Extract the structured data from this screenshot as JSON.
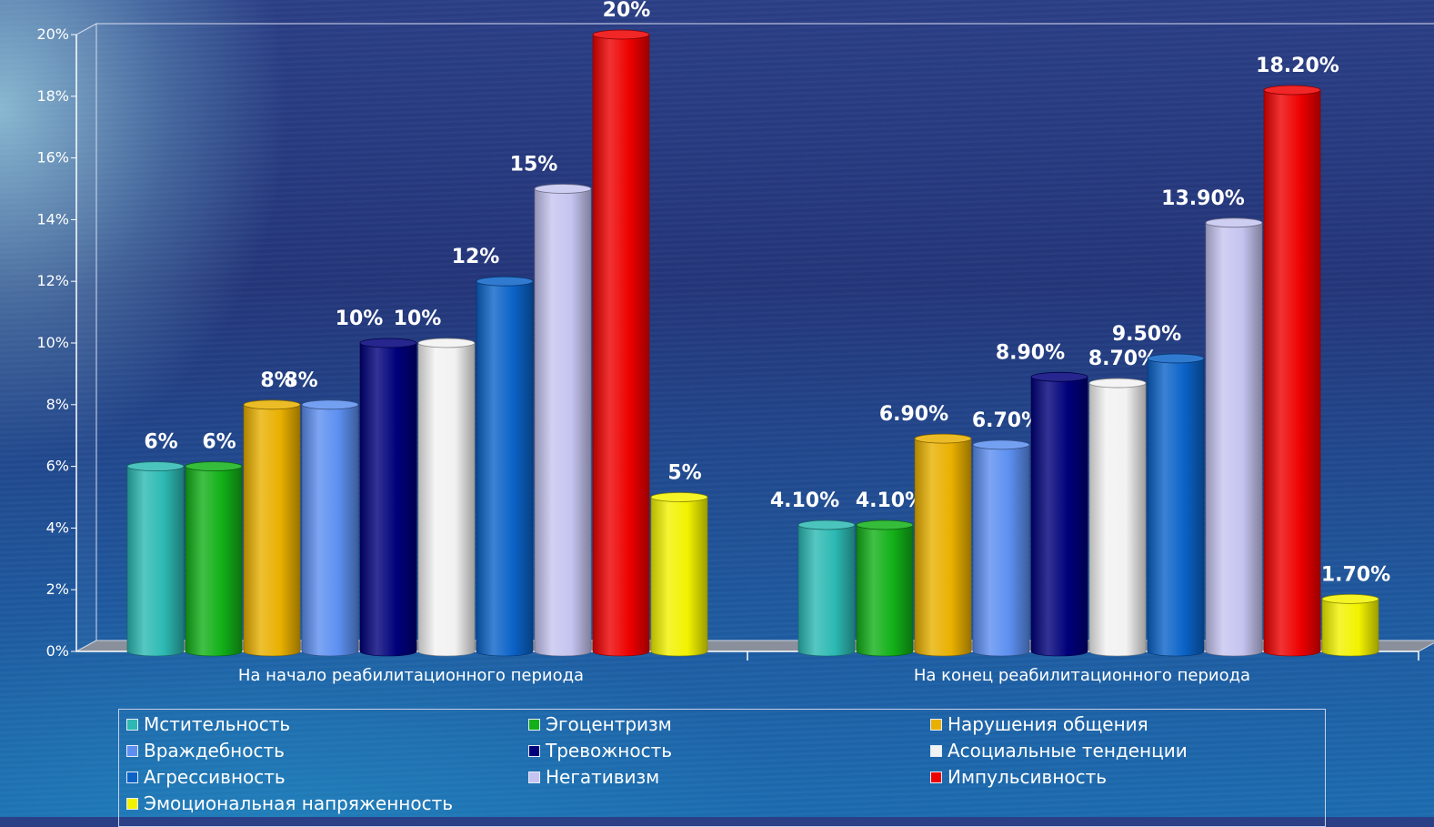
{
  "chart_data": {
    "type": "bar",
    "categories": [
      "На начало реабилитационного периода",
      "На конец реабилитационного периода"
    ],
    "ylim": [
      0,
      20
    ],
    "yticks": [
      "0%",
      "2%",
      "4%",
      "6%",
      "8%",
      "10%",
      "12%",
      "14%",
      "16%",
      "18%",
      "20%"
    ],
    "legend_position": "bottom",
    "series": [
      {
        "name": "Мстительность",
        "color": "#2cb9b3",
        "values": [
          6,
          4.1
        ],
        "labels": [
          "6%",
          "4.10%"
        ]
      },
      {
        "name": "Эгоцентризм",
        "color": "#12b018",
        "values": [
          6,
          4.1
        ],
        "labels": [
          "6%",
          "4.10%"
        ]
      },
      {
        "name": "Нарушения общения",
        "color": "#e9b000",
        "values": [
          8,
          6.9
        ],
        "labels": [
          "8%",
          "6.90%"
        ]
      },
      {
        "name": "Враждебность",
        "color": "#5c8ff0",
        "values": [
          8,
          6.7
        ],
        "labels": [
          "8%",
          "6.70%"
        ]
      },
      {
        "name": "Тревожность",
        "color": "#00007a",
        "values": [
          10,
          8.9
        ],
        "labels": [
          "10%",
          "8.90%"
        ]
      },
      {
        "name": "Асоциальные тенденции",
        "color": "#f2f2f2",
        "values": [
          10,
          8.7
        ],
        "labels": [
          "10%",
          "8.70%"
        ]
      },
      {
        "name": "Агрессивность",
        "color": "#0b63c8",
        "values": [
          12,
          9.5
        ],
        "labels": [
          "12%",
          "9.50%"
        ]
      },
      {
        "name": "Негативизм",
        "color": "#c5c4f0",
        "values": [
          15,
          13.9
        ],
        "labels": [
          "15%",
          "13.90%"
        ]
      },
      {
        "name": "Импульсивность",
        "color": "#ee0000",
        "values": [
          20,
          18.2
        ],
        "labels": [
          "20%",
          "18.20%"
        ]
      },
      {
        "name": "Эмоциональная напряженность",
        "color": "#f2f200",
        "values": [
          5,
          1.7
        ],
        "labels": [
          "5%",
          "1.70%"
        ]
      }
    ]
  }
}
